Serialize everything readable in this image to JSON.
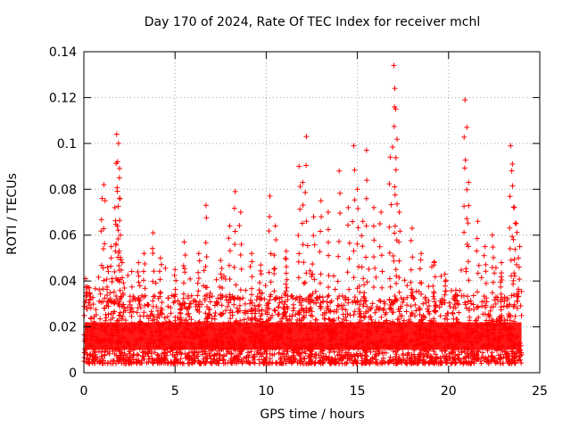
{
  "chart_data": {
    "type": "scatter",
    "title": "Day 170 of 2024, Rate Of TEC Index for receiver mchl",
    "xlabel": "GPS time / hours",
    "ylabel": "ROTI / TECUs",
    "xlim": [
      0,
      25
    ],
    "ylim": [
      0,
      0.14
    ],
    "xticks": [
      "0",
      "5",
      "10",
      "15",
      "20",
      "25"
    ],
    "yticks": [
      "0",
      "0.02",
      "0.04",
      "0.06",
      "0.08",
      "0.1",
      "0.12",
      "0.14"
    ],
    "grid": true,
    "marker": "+",
    "color": "#ff0000",
    "series": [
      {
        "name": "ROTI",
        "x": [
          0.1,
          0.3,
          1.0,
          1.1,
          1.3,
          1.5,
          1.7,
          1.8,
          1.85,
          1.9,
          1.95,
          2.0,
          2.1,
          3.0,
          3.3,
          3.8,
          4.2,
          5.0,
          5.5,
          6.3,
          6.7,
          7.5,
          8.0,
          8.3,
          8.6,
          9.2,
          9.7,
          10.2,
          10.5,
          11.1,
          11.8,
          12.0,
          12.2,
          12.6,
          13.0,
          13.4,
          14.0,
          14.5,
          14.8,
          15.0,
          15.3,
          15.5,
          15.9,
          16.3,
          16.8,
          17.0,
          17.05,
          17.1,
          17.3,
          18.0,
          18.5,
          19.2,
          19.8,
          20.4,
          20.9,
          21.0,
          21.1,
          21.6,
          22.0,
          22.4,
          22.9,
          23.4,
          23.5,
          23.6,
          23.7,
          23.9
        ],
        "y": [
          0.041,
          0.037,
          0.076,
          0.082,
          0.046,
          0.055,
          0.072,
          0.104,
          0.092,
          0.1,
          0.085,
          0.06,
          0.048,
          0.048,
          0.052,
          0.061,
          0.05,
          0.045,
          0.057,
          0.052,
          0.073,
          0.049,
          0.064,
          0.079,
          0.07,
          0.052,
          0.047,
          0.077,
          0.064,
          0.053,
          0.09,
          0.083,
          0.103,
          0.068,
          0.075,
          0.07,
          0.088,
          0.072,
          0.099,
          0.08,
          0.066,
          0.097,
          0.072,
          0.07,
          0.094,
          0.134,
          0.124,
          0.115,
          0.07,
          0.063,
          0.052,
          0.048,
          0.043,
          0.036,
          0.119,
          0.107,
          0.083,
          0.066,
          0.055,
          0.06,
          0.048,
          0.099,
          0.091,
          0.072,
          0.065,
          0.055
        ]
      }
    ]
  }
}
